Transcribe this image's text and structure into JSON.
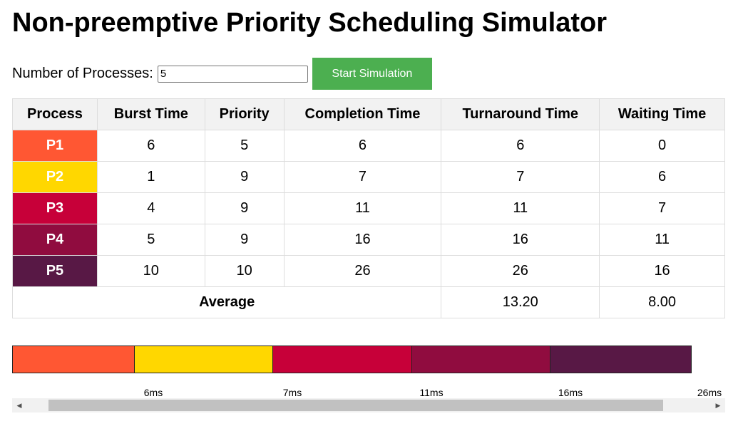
{
  "header": {
    "title": "Non-preemptive Priority Scheduling Simulator"
  },
  "controls": {
    "num_label": "Number of Processes:",
    "num_value": "5",
    "start_label": "Start Simulation",
    "start_color": "#4caf50"
  },
  "table": {
    "headers": [
      "Process",
      "Burst Time",
      "Priority",
      "Completion Time",
      "Turnaround Time",
      "Waiting Time"
    ],
    "rows": [
      {
        "process": "P1",
        "burst": "6",
        "priority": "5",
        "completion": "6",
        "turnaround": "6",
        "waiting": "0",
        "color": "#ff5733"
      },
      {
        "process": "P2",
        "burst": "1",
        "priority": "9",
        "completion": "7",
        "turnaround": "7",
        "waiting": "6",
        "color": "#ffd700"
      },
      {
        "process": "P3",
        "burst": "4",
        "priority": "9",
        "completion": "11",
        "turnaround": "11",
        "waiting": "7",
        "color": "#c70039"
      },
      {
        "process": "P4",
        "burst": "5",
        "priority": "9",
        "completion": "16",
        "turnaround": "16",
        "waiting": "11",
        "color": "#900c3f"
      },
      {
        "process": "P5",
        "burst": "10",
        "priority": "10",
        "completion": "26",
        "turnaround": "26",
        "waiting": "16",
        "color": "#581845"
      }
    ],
    "average": {
      "label": "Average",
      "turnaround": "13.20",
      "waiting": "8.00"
    }
  },
  "gantt": {
    "segments": [
      {
        "process": "P1",
        "color": "#ff5733"
      },
      {
        "process": "P2",
        "color": "#ffd700"
      },
      {
        "process": "P3",
        "color": "#c70039"
      },
      {
        "process": "P4",
        "color": "#900c3f"
      },
      {
        "process": "P5",
        "color": "#581845"
      }
    ],
    "ticks": [
      "6ms",
      "7ms",
      "11ms",
      "16ms",
      "26ms"
    ]
  },
  "scrollbar": {
    "left_icon": "left-arrow-icon",
    "right_icon": "right-arrow-icon"
  }
}
